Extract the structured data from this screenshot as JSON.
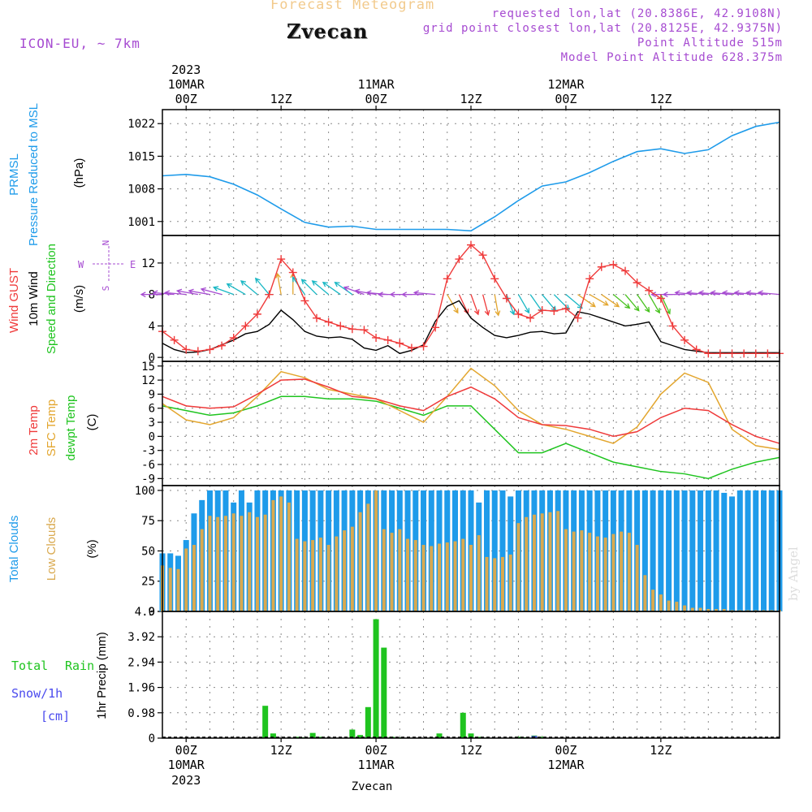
{
  "header": {
    "title": "Forecast Meteogram",
    "location": "Zvecan",
    "model": "ICON-EU, ~ 7km",
    "requested": "requested lon,lat (20.8386E, 42.9108N)",
    "grid_point": "grid point closest lon,lat (20.8125E, 42.9375N)",
    "point_altitude": "Point Altitude 515m",
    "model_altitude": "Model Point Altitude 628.375m",
    "credit": "by Angel"
  },
  "time_axis": {
    "top_year": "2023",
    "dates": [
      "10MAR",
      "11MAR",
      "12MAR"
    ],
    "ticks": [
      "00Z",
      "12Z",
      "00Z",
      "12Z",
      "00Z",
      "12Z"
    ],
    "bottom_year": "2023",
    "footer_location": "Zvecan",
    "hours": "hours after 10MAR 00Z, 3-hourly ticks; axis spans -3 to 75"
  },
  "colors": {
    "pressure": "#1e9bea",
    "gust": "#ef3a3a",
    "wind": "#000000",
    "temp2m": "#ef3a3a",
    "sfc": "#e3a62e",
    "dewpt": "#1fc41f",
    "clouds_total": "#1e9bea",
    "clouds_low": "#d9a94f",
    "rain": "#1fc41f",
    "snow": "#4a4aee",
    "purple": "#a64bd1",
    "black": "#000000"
  },
  "chart_data": [
    {
      "type": "line",
      "panel": "pressure",
      "ylabel": [
        "PRMSL",
        "Pressure Reduced to MSL",
        "(hPa)"
      ],
      "yticks": [
        1001,
        1008,
        1015,
        1022
      ],
      "ylim": [
        998,
        1025
      ],
      "series": [
        {
          "name": "PRMSL",
          "color": "pressure",
          "x": [
            -3,
            0,
            3,
            6,
            9,
            12,
            15,
            18,
            21,
            24,
            27,
            30,
            33,
            36,
            39,
            42,
            45,
            48,
            51,
            54,
            57,
            60,
            63,
            66,
            69,
            72,
            75
          ],
          "values": [
            1010.8,
            1011.1,
            1010.6,
            1009.0,
            1006.7,
            1003.7,
            1000.8,
            999.8,
            1000.0,
            999.3,
            999.3,
            999.3,
            999.3,
            999.0,
            1002.0,
            1005.5,
            1008.6,
            1009.5,
            1011.5,
            1013.9,
            1016.0,
            1016.6,
            1015.6,
            1016.4,
            1019.4,
            1021.4,
            1022.3
          ]
        }
      ]
    },
    {
      "type": "line",
      "panel": "wind",
      "ylabel": [
        "Wind GUST",
        "10m Wind",
        "Speed and Direction",
        "(m/s)"
      ],
      "yticks": [
        0,
        4,
        8,
        12
      ],
      "ylim": [
        -0.5,
        15.5
      ],
      "series": [
        {
          "name": "Wind GUST",
          "color": "gust",
          "markers": true,
          "x": [
            -3,
            -1.5,
            0,
            1.5,
            3,
            4.5,
            6,
            7.5,
            9,
            10.5,
            12,
            13.5,
            15,
            16.5,
            18,
            19.5,
            21,
            22.5,
            24,
            25.5,
            27,
            28.5,
            30,
            31.5,
            33,
            34.5,
            36,
            37.5,
            39,
            40.5,
            42,
            43.5,
            45,
            46.5,
            48,
            49.5,
            51,
            52.5,
            54,
            55.5,
            57,
            58.5,
            60,
            61.5,
            63,
            64.5,
            66,
            67.5,
            69,
            70.5,
            72,
            73.5,
            75
          ],
          "values": [
            3.3,
            2.2,
            1.0,
            0.8,
            1.0,
            1.5,
            2.5,
            4.0,
            5.5,
            8.0,
            12.5,
            10.8,
            7.2,
            5.0,
            4.5,
            4.0,
            3.6,
            3.5,
            2.5,
            2.2,
            1.8,
            1.2,
            1.4,
            3.8,
            10.0,
            12.5,
            14.3,
            13.0,
            10.0,
            7.5,
            5.5,
            5.0,
            6.0,
            5.9,
            6.2,
            5.0,
            10.0,
            11.5,
            11.8,
            11.0,
            9.5,
            8.5,
            7.5,
            4.0,
            2.2,
            1.0,
            0.5,
            0.5,
            0.5,
            0.5,
            0.5,
            0.5,
            0.5
          ]
        },
        {
          "name": "10m Wind",
          "color": "wind",
          "x": [
            -3,
            -1.5,
            0,
            1.5,
            3,
            4.5,
            6,
            7.5,
            9,
            10.5,
            12,
            13.5,
            15,
            16.5,
            18,
            19.5,
            21,
            22.5,
            24,
            25.5,
            27,
            28.5,
            30,
            31.5,
            33,
            34.5,
            36,
            37.5,
            39,
            40.5,
            42,
            43.5,
            45,
            46.5,
            48,
            49.5,
            51,
            52.5,
            54,
            55.5,
            57,
            58.5,
            60,
            61.5,
            63,
            64.5,
            66,
            67.5,
            69,
            70.5,
            72,
            73.5,
            75
          ],
          "values": [
            1.8,
            1.0,
            0.6,
            0.7,
            1.0,
            1.6,
            2.2,
            3.0,
            3.3,
            4.2,
            6.0,
            4.8,
            3.3,
            2.7,
            2.5,
            2.6,
            2.3,
            1.2,
            0.9,
            1.5,
            0.5,
            0.9,
            1.6,
            4.6,
            6.5,
            7.2,
            5.0,
            3.8,
            2.8,
            2.5,
            2.8,
            3.2,
            3.3,
            3.0,
            3.1,
            5.8,
            5.5,
            5.0,
            4.5,
            4.0,
            4.2,
            4.5,
            2.0,
            1.5,
            1.0,
            0.8,
            0.6,
            0.6,
            0.6,
            0.6,
            0.6,
            0.6,
            0.6
          ]
        }
      ],
      "barbs": {
        "note": "wind direction arrows at 8 m/s level; angle in degrees clockwise from east",
        "x": [
          -3,
          -1.5,
          0,
          1.5,
          3,
          4.5,
          6,
          7.5,
          9,
          10.5,
          12,
          13.5,
          15,
          16.5,
          18,
          19.5,
          21,
          22.5,
          24,
          25.5,
          27,
          28.5,
          30,
          31.5,
          33,
          34.5,
          36,
          37.5,
          39,
          40.5,
          42,
          43.5,
          45,
          46.5,
          48,
          49.5,
          51,
          52.5,
          54,
          55.5,
          57,
          58.5,
          60,
          61.5,
          63,
          64.5,
          66,
          67.5,
          69,
          70.5,
          72,
          73.5,
          75
        ],
        "angle": [
          180,
          185,
          185,
          190,
          190,
          195,
          200,
          210,
          220,
          230,
          260,
          270,
          235,
          225,
          220,
          215,
          215,
          200,
          190,
          185,
          180,
          180,
          180,
          185,
          60,
          65,
          70,
          75,
          80,
          70,
          60,
          55,
          50,
          45,
          40,
          35,
          30,
          35,
          40,
          50,
          55,
          60,
          65,
          180,
          180,
          185,
          185,
          185,
          185,
          185,
          185,
          185,
          185
        ],
        "color": [
          "purple",
          "purple",
          "purple",
          "purple",
          "purple",
          "purple",
          "teal",
          "teal",
          "teal",
          "teal",
          "orange",
          "orange",
          "teal",
          "teal",
          "teal",
          "teal",
          "teal",
          "purple",
          "purple",
          "purple",
          "purple",
          "purple",
          "purple",
          "purple",
          "orange",
          "red",
          "red",
          "red",
          "orange",
          "teal",
          "teal",
          "teal",
          "teal",
          "teal",
          "teal",
          "orange",
          "orange",
          "orange",
          "green",
          "green",
          "green",
          "green",
          "green",
          "purple",
          "purple",
          "purple",
          "purple",
          "purple",
          "purple",
          "purple",
          "purple",
          "purple",
          "purple"
        ],
        "legend": {
          "up": "N",
          "down": "S",
          "left": "W",
          "right": "E"
        }
      }
    },
    {
      "type": "line",
      "panel": "temperature",
      "ylabel": [
        "2m Temp",
        "SFC Temp",
        "dewpt Temp",
        "(C)"
      ],
      "yticks": [
        -9,
        -6,
        -3,
        0,
        3,
        6,
        9,
        12,
        15
      ],
      "ylim": [
        -10.5,
        16
      ],
      "series": [
        {
          "name": "2m Temp",
          "color": "temp2m",
          "x": [
            -3,
            0,
            3,
            6,
            9,
            12,
            15,
            18,
            21,
            24,
            27,
            30,
            33,
            36,
            39,
            42,
            45,
            48,
            51,
            54,
            57,
            60,
            63,
            66,
            69,
            72,
            75
          ],
          "values": [
            8.5,
            6.5,
            6.0,
            6.3,
            9.0,
            12.0,
            12.2,
            10.5,
            8.5,
            8.0,
            6.5,
            5.5,
            8.5,
            10.5,
            8.0,
            4.0,
            2.5,
            2.3,
            1.5,
            0.0,
            1.0,
            4.0,
            6.0,
            5.5,
            2.5,
            0.0,
            -1.5
          ]
        },
        {
          "name": "SFC Temp",
          "color": "sfc",
          "x": [
            -3,
            0,
            3,
            6,
            9,
            12,
            15,
            18,
            21,
            24,
            27,
            30,
            33,
            36,
            39,
            42,
            45,
            48,
            51,
            54,
            57,
            60,
            63,
            66,
            69,
            72,
            75
          ],
          "values": [
            7.0,
            3.5,
            2.5,
            4.0,
            8.5,
            13.8,
            12.5,
            10.0,
            9.0,
            8.0,
            5.5,
            3.0,
            8.5,
            14.5,
            10.8,
            5.5,
            2.5,
            1.5,
            0.0,
            -1.5,
            2.0,
            9.0,
            13.5,
            11.5,
            1.5,
            -2.0,
            -2.8
          ]
        },
        {
          "name": "dewpt Temp",
          "color": "dewpt",
          "x": [
            -3,
            0,
            3,
            6,
            9,
            12,
            15,
            18,
            21,
            24,
            27,
            30,
            33,
            36,
            39,
            42,
            45,
            48,
            51,
            54,
            57,
            60,
            63,
            66,
            69,
            72,
            75
          ],
          "values": [
            6.5,
            5.5,
            4.5,
            5.0,
            6.5,
            8.5,
            8.5,
            8.0,
            8.0,
            7.5,
            6.0,
            4.5,
            6.5,
            6.5,
            1.5,
            -3.5,
            -3.5,
            -1.5,
            -3.5,
            -5.5,
            -6.5,
            -7.5,
            -8.0,
            -9.0,
            -7.0,
            -5.5,
            -4.5
          ]
        }
      ]
    },
    {
      "type": "bar",
      "panel": "clouds",
      "ylabel": [
        "Total Clouds",
        "Low Clouds",
        "(%)"
      ],
      "yticks": [
        0,
        25,
        50,
        75,
        100
      ],
      "ylim": [
        0,
        104
      ],
      "x": [
        -3,
        -2,
        -1,
        0,
        1,
        2,
        3,
        4,
        5,
        6,
        7,
        8,
        9,
        10,
        11,
        12,
        13,
        14,
        15,
        16,
        17,
        18,
        19,
        20,
        21,
        22,
        23,
        24,
        25,
        26,
        27,
        28,
        29,
        30,
        31,
        32,
        33,
        34,
        35,
        36,
        37,
        38,
        39,
        40,
        41,
        42,
        43,
        44,
        45,
        46,
        47,
        48,
        49,
        50,
        51,
        52,
        53,
        54,
        55,
        56,
        57,
        58,
        59,
        60,
        61,
        62,
        63,
        64,
        65,
        66,
        67,
        68,
        69,
        70,
        71,
        72,
        73,
        74,
        75
      ],
      "series": [
        {
          "name": "Total Clouds",
          "color": "clouds_total",
          "values": [
            48,
            48,
            46,
            59,
            81,
            92,
            100,
            100,
            100,
            90,
            100,
            90,
            100,
            100,
            100,
            100,
            100,
            100,
            100,
            100,
            100,
            100,
            100,
            100,
            100,
            100,
            100,
            100,
            100,
            100,
            100,
            100,
            100,
            100,
            100,
            100,
            100,
            100,
            100,
            100,
            90,
            100,
            100,
            100,
            95,
            100,
            100,
            100,
            100,
            100,
            100,
            100,
            100,
            100,
            100,
            100,
            100,
            100,
            100,
            100,
            100,
            100,
            100,
            100,
            100,
            100,
            100,
            100,
            100,
            100,
            100,
            98,
            95,
            100,
            100,
            100,
            100,
            100,
            100
          ]
        },
        {
          "name": "Low Clouds",
          "color": "clouds_low",
          "values": [
            38,
            36,
            35,
            52,
            55,
            68,
            79,
            78,
            79,
            81,
            79,
            82,
            78,
            80,
            92,
            95,
            90,
            60,
            58,
            59,
            61,
            55,
            62,
            67,
            70,
            82,
            89,
            100,
            68,
            65,
            68,
            60,
            59,
            55,
            54,
            56,
            57,
            58,
            60,
            55,
            63,
            45,
            44,
            45,
            47,
            73,
            78,
            80,
            81,
            82,
            83,
            68,
            66,
            67,
            65,
            62,
            61,
            64,
            66,
            65,
            55,
            30,
            18,
            14,
            9,
            8,
            5,
            3,
            3,
            2,
            2,
            2,
            1,
            1,
            1,
            1,
            1,
            1,
            1
          ]
        }
      ]
    },
    {
      "type": "bar",
      "panel": "precip",
      "ylabel": [
        "Total",
        "Rain",
        "Snow/1h",
        "[cm]",
        "1hr Precip (mm)"
      ],
      "yticks": [
        0,
        0.98,
        1.96,
        2.94,
        3.92,
        4.9
      ],
      "ylim": [
        0,
        4.9
      ],
      "series": [
        {
          "name": "Total Rain",
          "color": "rain",
          "x": [
            10,
            11,
            14,
            15,
            16,
            17,
            21,
            22,
            23,
            24,
            25,
            26,
            27,
            31,
            32,
            35,
            36,
            37,
            38,
            42,
            43,
            44,
            45
          ],
          "values": [
            1.25,
            0.18,
            0.05,
            0.03,
            0.2,
            0.05,
            0.33,
            0.12,
            1.2,
            4.6,
            3.5,
            0.05,
            0.03,
            0.02,
            0.18,
            0.98,
            0.18,
            0.05,
            0.02,
            0.05,
            0.03,
            0.1,
            0.05
          ]
        },
        {
          "name": "Snow/1h",
          "color": "snow",
          "x": [
            44
          ],
          "values": [
            0.08
          ]
        }
      ]
    }
  ]
}
